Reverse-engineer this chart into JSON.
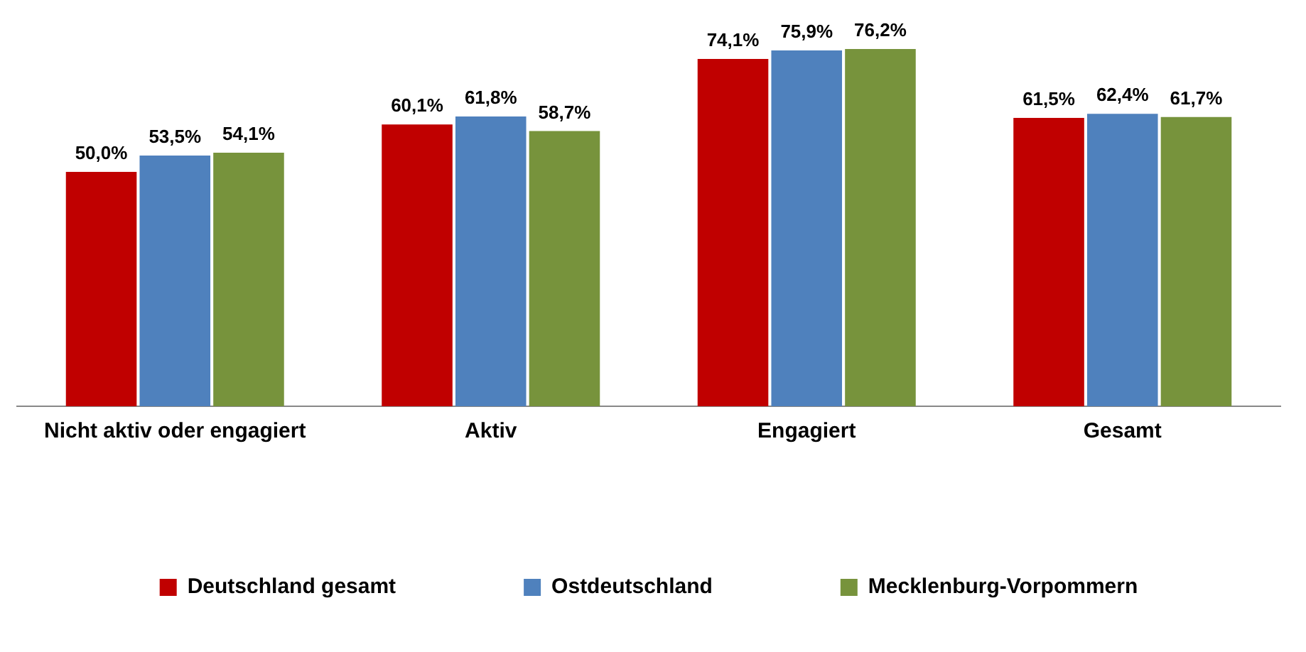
{
  "chart_data": {
    "type": "bar",
    "categories": [
      "Nicht aktiv oder engagiert",
      "Aktiv",
      "Engagiert",
      "Gesamt"
    ],
    "series": [
      {
        "name": "Deutschland gesamt",
        "color": "#c00000",
        "values": [
          50.0,
          60.1,
          74.1,
          61.5
        ],
        "value_labels": [
          "50,0%",
          "60,1%",
          "74,1%",
          "61,5%"
        ]
      },
      {
        "name": "Ostdeutschland",
        "color": "#4f81bd",
        "values": [
          53.5,
          61.8,
          75.9,
          62.4
        ],
        "value_labels": [
          "53,5%",
          "61,8%",
          "75,9%",
          "62,4%"
        ]
      },
      {
        "name": "Mecklenburg-Vorpommern",
        "color": "#77933c",
        "values": [
          54.1,
          58.7,
          76.2,
          61.7
        ],
        "value_labels": [
          "54,1%",
          "58,7%",
          "76,2%",
          "61,7%"
        ]
      }
    ],
    "tick_labels": "x",
    "grid": false,
    "legend": "bottom"
  }
}
